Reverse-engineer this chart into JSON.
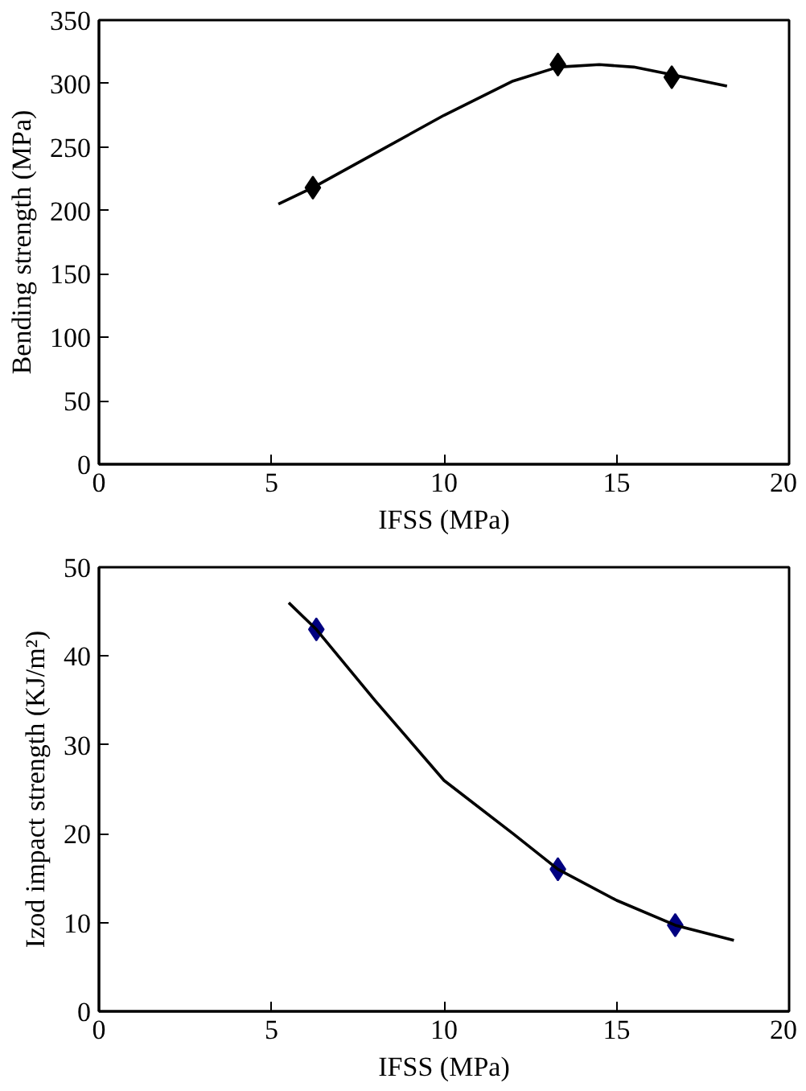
{
  "chart_data": [
    {
      "type": "scatter",
      "xlabel": "IFSS (MPa)",
      "ylabel": "Bending strength (MPa)",
      "xlim": [
        0,
        20
      ],
      "xticks": [
        0,
        5,
        10,
        15,
        20
      ],
      "ylim": [
        0,
        350
      ],
      "yticks": [
        0,
        50,
        100,
        150,
        200,
        250,
        300,
        350
      ],
      "grid": false,
      "marker": "diamond",
      "series": [
        {
          "color": "#000000",
          "x": [
            6.2,
            13.3,
            16.6
          ],
          "values": [
            218,
            315,
            305
          ]
        },
        {
          "type": "line",
          "color": "#000000",
          "marker": "none",
          "x": [
            5.2,
            6.2,
            8,
            10,
            12,
            13.3,
            14.5,
            15.5,
            16.6,
            18.2
          ],
          "values": [
            205,
            218,
            245,
            275,
            302,
            313,
            315,
            313,
            307,
            298
          ]
        }
      ]
    },
    {
      "type": "scatter",
      "xlabel": "IFSS (MPa)",
      "ylabel": "Izod impact strength (KJ/m²)",
      "xlim": [
        0,
        20
      ],
      "xticks": [
        0,
        5,
        10,
        15,
        20
      ],
      "ylim": [
        0,
        50
      ],
      "yticks": [
        0,
        10,
        20,
        30,
        40,
        50
      ],
      "grid": false,
      "marker": "diamond",
      "series": [
        {
          "color": "#000080",
          "x": [
            6.3,
            13.3,
            16.7
          ],
          "values": [
            43,
            16,
            9.7
          ]
        },
        {
          "type": "line",
          "color": "#000000",
          "marker": "none",
          "x": [
            5.5,
            6.3,
            8,
            10,
            12,
            13.3,
            15,
            16.7,
            18.4
          ],
          "values": [
            46,
            43,
            35,
            26,
            20,
            16,
            12.5,
            9.7,
            8
          ]
        }
      ]
    }
  ]
}
